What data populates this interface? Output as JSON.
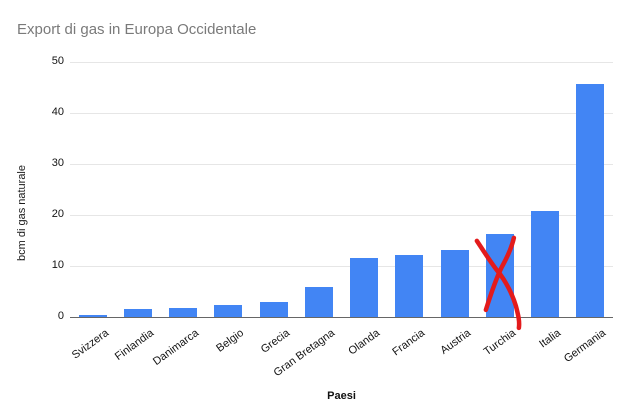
{
  "chart_data": {
    "type": "bar",
    "title": "Export di gas in Europa Occidentale",
    "xlabel": "Paesi",
    "ylabel": "bcm di gas naturale",
    "categories": [
      "Svizzera",
      "Finlandia",
      "Danimarca",
      "Belgio",
      "Grecia",
      "Gran Bretagna",
      "Olanda",
      "Francia",
      "Austria",
      "Turchia",
      "Italia",
      "Germania"
    ],
    "values": [
      0.3,
      1.5,
      1.8,
      2.3,
      2.9,
      5.9,
      11.5,
      12.2,
      13.1,
      16.3,
      20.7,
      45.6
    ],
    "ylim": [
      0,
      50
    ],
    "yticks": [
      0,
      10,
      20,
      30,
      40,
      50
    ],
    "grid": true,
    "legend": "none",
    "bar_color": "#4285f4",
    "annotation": {
      "shape": "hand-drawn-x-cross",
      "target_category": "Turchia",
      "color": "#e31b1c"
    }
  },
  "colors": {
    "title_text": "#7a7a7a",
    "axis_line": "#666666",
    "gridline": "#e6e6e6",
    "tick_text": "#141414"
  }
}
